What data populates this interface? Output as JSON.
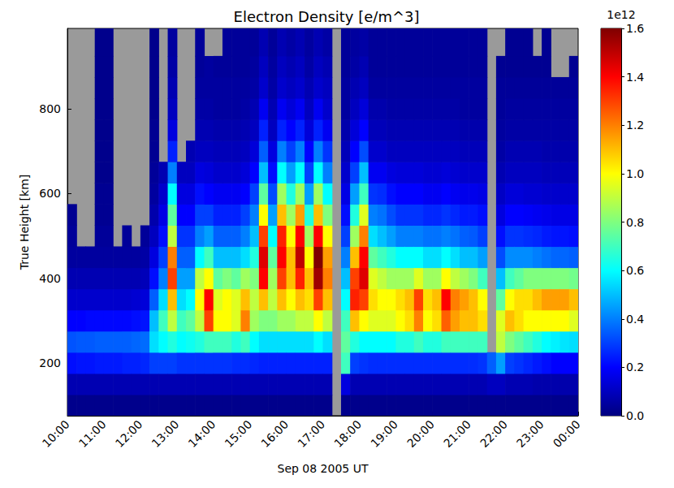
{
  "chart_data": {
    "type": "heatmap",
    "title": "Electron Density [e/m^3]",
    "x_label": "Sep 08 2005 UT",
    "y_label": "True Height [km]",
    "grid": false,
    "xlim": [
      10,
      24
    ],
    "xticks": [
      {
        "value": 10,
        "label": "10:00"
      },
      {
        "value": 11,
        "label": "11:00"
      },
      {
        "value": 12,
        "label": "12:00"
      },
      {
        "value": 13,
        "label": "13:00"
      },
      {
        "value": 14,
        "label": "14:00"
      },
      {
        "value": 15,
        "label": "15:00"
      },
      {
        "value": 16,
        "label": "16:00"
      },
      {
        "value": 17,
        "label": "17:00"
      },
      {
        "value": 18,
        "label": "18:00"
      },
      {
        "value": 19,
        "label": "19:00"
      },
      {
        "value": 20,
        "label": "20:00"
      },
      {
        "value": 21,
        "label": "21:00"
      },
      {
        "value": 22,
        "label": "22:00"
      },
      {
        "value": 23,
        "label": "23:00"
      },
      {
        "value": 24,
        "label": "00:00"
      }
    ],
    "ylim": [
      75,
      990
    ],
    "yticks": [
      200,
      400,
      600,
      800
    ],
    "x": [
      10.125,
      10.375,
      10.625,
      10.875,
      11.125,
      11.375,
      11.625,
      11.875,
      12.125,
      12.375,
      12.625,
      12.875,
      13.125,
      13.375,
      13.625,
      13.875,
      14.125,
      14.375,
      14.625,
      14.875,
      15.125,
      15.375,
      15.625,
      15.875,
      16.125,
      16.375,
      16.625,
      16.875,
      17.125,
      17.375,
      17.625,
      17.875,
      18.125,
      18.375,
      18.625,
      18.875,
      19.125,
      19.375,
      19.625,
      19.875,
      20.125,
      20.375,
      20.625,
      20.875,
      21.125,
      21.375,
      21.625,
      21.875,
      22.125,
      22.375,
      22.625,
      22.875,
      23.125,
      23.375,
      23.625,
      23.875
    ],
    "y": [
      100,
      150,
      200,
      250,
      300,
      350,
      400,
      450,
      500,
      550,
      600,
      650,
      700,
      750,
      800,
      850,
      900,
      950
    ],
    "values": [
      [
        0.02,
        0.08,
        0.22,
        0.33,
        0.2,
        0.12,
        0.08,
        0.05,
        0.04,
        0.03,
        null,
        null,
        null,
        null,
        null,
        null,
        null,
        null
      ],
      [
        0.02,
        0.08,
        0.23,
        0.34,
        0.2,
        0.12,
        0.08,
        0.05,
        null,
        null,
        null,
        null,
        null,
        null,
        null,
        null,
        null,
        null
      ],
      [
        0.02,
        0.08,
        0.23,
        0.34,
        0.21,
        0.12,
        0.08,
        0.05,
        null,
        null,
        null,
        null,
        null,
        null,
        null,
        null,
        null,
        null
      ],
      [
        0.02,
        0.08,
        0.24,
        0.35,
        0.21,
        0.12,
        0.08,
        0.05,
        0.04,
        0.03,
        0.03,
        0.02,
        0.02,
        0.02,
        0.02,
        0.02,
        0.02,
        0.02
      ],
      [
        0.02,
        0.08,
        0.24,
        0.35,
        0.21,
        0.12,
        0.08,
        0.05,
        0.04,
        0.03,
        0.03,
        0.02,
        0.02,
        0.02,
        0.02,
        0.02,
        0.02,
        0.02
      ],
      [
        0.02,
        0.08,
        0.24,
        0.35,
        0.21,
        0.12,
        0.08,
        0.05,
        null,
        null,
        null,
        null,
        null,
        null,
        null,
        null,
        null,
        null
      ],
      [
        0.02,
        0.08,
        0.25,
        0.35,
        0.21,
        0.12,
        0.08,
        0.05,
        0.04,
        null,
        null,
        null,
        null,
        null,
        null,
        null,
        null,
        null
      ],
      [
        0.02,
        0.08,
        0.25,
        0.36,
        0.22,
        0.13,
        0.08,
        0.05,
        null,
        null,
        null,
        null,
        null,
        null,
        null,
        null,
        null,
        null
      ],
      [
        0.02,
        0.08,
        0.26,
        0.37,
        0.23,
        0.14,
        0.09,
        0.06,
        0.04,
        null,
        null,
        null,
        null,
        null,
        null,
        null,
        null,
        null
      ],
      [
        0.02,
        0.08,
        0.3,
        0.55,
        0.5,
        0.35,
        0.22,
        0.15,
        0.1,
        0.07,
        0.05,
        0.04,
        0.03,
        0.03,
        0.02,
        0.02,
        0.02,
        0.02
      ],
      [
        0.02,
        0.08,
        0.3,
        0.6,
        0.7,
        0.55,
        0.4,
        0.3,
        0.22,
        0.16,
        0.12,
        0.08,
        null,
        null,
        null,
        null,
        null,
        null
      ],
      [
        0.02,
        0.08,
        0.3,
        0.65,
        0.9,
        1.1,
        1.3,
        1.2,
        0.9,
        0.75,
        0.6,
        0.4,
        0.25,
        0.15,
        0.1,
        0.08,
        0.06,
        0.05
      ],
      [
        0.02,
        0.08,
        0.28,
        0.6,
        0.7,
        0.55,
        0.45,
        0.35,
        0.28,
        0.2,
        0.15,
        0.1,
        null,
        null,
        null,
        null,
        null,
        null
      ],
      [
        0.02,
        0.08,
        0.28,
        0.62,
        0.75,
        0.6,
        0.45,
        0.35,
        0.28,
        0.2,
        0.15,
        0.1,
        0.08,
        null,
        null,
        null,
        null,
        null
      ],
      [
        0.02,
        0.08,
        0.28,
        0.65,
        0.9,
        1.0,
        0.9,
        0.6,
        0.4,
        0.3,
        0.22,
        0.15,
        0.1,
        0.08,
        0.06,
        0.05,
        0.04,
        0.04
      ],
      [
        0.02,
        0.08,
        0.28,
        0.7,
        1.3,
        1.4,
        1.0,
        0.7,
        0.45,
        0.3,
        0.2,
        0.14,
        0.1,
        0.08,
        0.06,
        0.05,
        0.05,
        null
      ],
      [
        0.02,
        0.08,
        0.28,
        0.7,
        1.0,
        0.95,
        0.75,
        0.5,
        0.35,
        0.25,
        0.18,
        0.12,
        0.09,
        0.07,
        0.05,
        0.05,
        0.04,
        null
      ],
      [
        0.02,
        0.08,
        0.28,
        0.7,
        1.0,
        1.0,
        0.8,
        0.5,
        0.35,
        0.25,
        0.18,
        0.12,
        0.09,
        0.07,
        0.05,
        0.05,
        0.04,
        0.04
      ],
      [
        0.02,
        0.08,
        0.27,
        0.65,
        0.95,
        0.95,
        0.75,
        0.5,
        0.35,
        0.25,
        0.18,
        0.12,
        0.09,
        0.07,
        0.05,
        0.05,
        0.04,
        0.04
      ],
      [
        0.02,
        0.08,
        0.27,
        0.7,
        1.2,
        1.1,
        0.85,
        0.55,
        0.4,
        0.3,
        0.2,
        0.14,
        0.1,
        0.08,
        0.06,
        0.05,
        0.04,
        0.04
      ],
      [
        0.02,
        0.08,
        0.26,
        0.6,
        0.85,
        0.9,
        0.8,
        0.65,
        0.5,
        0.4,
        0.3,
        0.2,
        0.14,
        0.1,
        0.08,
        0.06,
        0.05,
        0.04
      ],
      [
        0.02,
        0.08,
        0.25,
        0.55,
        0.8,
        1.1,
        1.4,
        1.45,
        1.3,
        1.0,
        0.75,
        0.5,
        0.35,
        0.25,
        0.18,
        0.12,
        0.1,
        0.08
      ],
      [
        0.02,
        0.08,
        0.25,
        0.55,
        0.8,
        0.9,
        0.85,
        0.75,
        0.6,
        0.45,
        0.32,
        0.22,
        0.15,
        0.1,
        0.08,
        0.06,
        0.05,
        0.04
      ],
      [
        0.02,
        0.08,
        0.25,
        0.55,
        0.85,
        1.1,
        1.3,
        1.4,
        1.35,
        1.1,
        0.85,
        0.6,
        0.4,
        0.25,
        0.18,
        0.12,
        0.1,
        0.08
      ],
      [
        0.02,
        0.08,
        0.25,
        0.55,
        0.85,
        1.0,
        1.1,
        1.1,
        1.0,
        0.85,
        0.65,
        0.45,
        0.3,
        0.2,
        0.14,
        0.1,
        0.08,
        0.06
      ],
      [
        0.02,
        0.08,
        0.25,
        0.55,
        0.9,
        1.1,
        1.35,
        1.5,
        1.4,
        1.15,
        0.85,
        0.6,
        0.4,
        0.25,
        0.18,
        0.12,
        0.1,
        0.08
      ],
      [
        0.02,
        0.08,
        0.25,
        0.55,
        0.9,
        1.05,
        1.1,
        1.0,
        0.85,
        0.65,
        0.45,
        0.3,
        0.2,
        0.14,
        0.1,
        0.08,
        0.06,
        0.05
      ],
      [
        0.02,
        0.08,
        0.25,
        0.6,
        1.0,
        1.3,
        1.55,
        1.6,
        1.4,
        1.1,
        0.85,
        0.6,
        0.4,
        0.25,
        0.18,
        0.12,
        0.1,
        0.08
      ],
      [
        0.02,
        0.08,
        0.25,
        0.55,
        0.9,
        1.1,
        1.2,
        1.15,
        1.0,
        0.8,
        0.6,
        0.4,
        0.28,
        0.18,
        0.12,
        0.1,
        0.08,
        0.06
      ],
      [
        null,
        null,
        null,
        null,
        null,
        null,
        null,
        null,
        null,
        null,
        null,
        null,
        null,
        null,
        null,
        null,
        null,
        null
      ],
      [
        0.02,
        0.15,
        0.7,
        0.75,
        0.7,
        0.6,
        0.5,
        0.4,
        0.3,
        0.22,
        0.16,
        0.12,
        0.09,
        0.07,
        0.05,
        0.05,
        0.04,
        0.04
      ],
      [
        0.02,
        0.08,
        0.3,
        0.65,
        1.1,
        1.35,
        1.3,
        1.1,
        0.85,
        0.65,
        0.45,
        0.3,
        0.2,
        0.14,
        0.1,
        0.08,
        0.06,
        0.05
      ],
      [
        0.02,
        0.08,
        0.28,
        0.6,
        1.0,
        1.3,
        1.45,
        1.4,
        1.2,
        0.95,
        0.7,
        0.5,
        0.32,
        0.2,
        0.14,
        0.1,
        0.08,
        0.06
      ],
      [
        0.02,
        0.08,
        0.27,
        0.6,
        0.95,
        1.05,
        0.95,
        0.75,
        0.55,
        0.4,
        0.28,
        0.18,
        0.12,
        0.09,
        0.07,
        0.05,
        0.04,
        0.04
      ],
      [
        0.02,
        0.08,
        0.27,
        0.6,
        0.95,
        1.0,
        0.9,
        0.7,
        0.5,
        0.38,
        0.27,
        0.18,
        0.12,
        0.09,
        0.07,
        0.05,
        0.04,
        0.04
      ],
      [
        0.02,
        0.08,
        0.27,
        0.6,
        0.95,
        1.0,
        0.85,
        0.65,
        0.45,
        0.32,
        0.22,
        0.15,
        0.1,
        0.08,
        0.06,
        0.05,
        0.04,
        0.04
      ],
      [
        0.02,
        0.08,
        0.27,
        0.65,
        1.0,
        1.05,
        0.85,
        0.6,
        0.4,
        0.28,
        0.2,
        0.14,
        0.1,
        0.08,
        0.06,
        0.05,
        0.04,
        0.04
      ],
      [
        0.02,
        0.08,
        0.27,
        0.65,
        1.05,
        1.1,
        0.85,
        0.6,
        0.4,
        0.28,
        0.2,
        0.14,
        0.1,
        0.08,
        0.06,
        0.05,
        0.04,
        0.04
      ],
      [
        0.02,
        0.08,
        0.27,
        0.7,
        1.2,
        1.3,
        0.95,
        0.6,
        0.4,
        0.28,
        0.2,
        0.14,
        0.1,
        0.08,
        0.06,
        0.05,
        0.04,
        0.04
      ],
      [
        0.02,
        0.08,
        0.27,
        0.65,
        1.0,
        1.05,
        0.85,
        0.55,
        0.38,
        0.26,
        0.18,
        0.13,
        0.1,
        0.08,
        0.06,
        0.05,
        0.04,
        0.04
      ],
      [
        0.02,
        0.08,
        0.27,
        0.65,
        1.05,
        1.1,
        0.85,
        0.55,
        0.38,
        0.26,
        0.18,
        0.13,
        0.1,
        0.08,
        0.06,
        0.05,
        0.04,
        0.04
      ],
      [
        0.02,
        0.08,
        0.27,
        0.7,
        1.25,
        1.4,
        1.0,
        0.6,
        0.4,
        0.28,
        0.2,
        0.14,
        0.1,
        0.08,
        0.06,
        0.05,
        0.04,
        0.04
      ],
      [
        0.02,
        0.08,
        0.27,
        0.7,
        1.15,
        1.2,
        0.9,
        0.55,
        0.38,
        0.26,
        0.18,
        0.13,
        0.1,
        0.08,
        0.06,
        0.05,
        0.04,
        0.04
      ],
      [
        0.02,
        0.08,
        0.27,
        0.7,
        1.1,
        1.15,
        0.85,
        0.5,
        0.35,
        0.24,
        0.17,
        0.12,
        0.09,
        0.07,
        0.05,
        0.05,
        0.04,
        0.04
      ],
      [
        0.02,
        0.08,
        0.27,
        0.7,
        1.1,
        1.1,
        0.8,
        0.5,
        0.34,
        0.24,
        0.17,
        0.12,
        0.09,
        0.07,
        0.05,
        0.05,
        0.04,
        0.04
      ],
      [
        0.02,
        0.08,
        0.28,
        0.7,
        1.05,
        1.0,
        0.7,
        0.45,
        0.3,
        0.22,
        0.16,
        0.12,
        0.09,
        0.07,
        0.05,
        0.05,
        0.04,
        0.04
      ],
      [
        0.02,
        0.1,
        0.35,
        null,
        null,
        null,
        null,
        null,
        null,
        null,
        null,
        null,
        null,
        null,
        null,
        null,
        null,
        null
      ],
      [
        0.02,
        0.1,
        0.45,
        0.9,
        0.95,
        0.75,
        0.5,
        0.32,
        0.22,
        0.15,
        0.11,
        0.08,
        0.06,
        0.05,
        0.04,
        0.04,
        0.03,
        null
      ],
      [
        0.02,
        0.08,
        0.3,
        0.8,
        1.1,
        1.0,
        0.7,
        0.42,
        0.28,
        0.2,
        0.14,
        0.1,
        0.08,
        0.06,
        0.05,
        0.04,
        0.03,
        0.03
      ],
      [
        0.02,
        0.08,
        0.28,
        0.75,
        1.05,
        1.05,
        0.75,
        0.42,
        0.28,
        0.2,
        0.14,
        0.1,
        0.08,
        0.06,
        0.05,
        0.04,
        0.03,
        0.03
      ],
      [
        0.02,
        0.08,
        0.26,
        0.7,
        1.0,
        1.05,
        0.8,
        0.42,
        0.27,
        0.19,
        0.13,
        0.1,
        0.08,
        0.06,
        0.05,
        0.04,
        0.03,
        0.03
      ],
      [
        0.02,
        0.07,
        0.24,
        0.65,
        1.0,
        1.1,
        0.8,
        0.4,
        0.26,
        0.18,
        0.13,
        0.1,
        0.08,
        0.06,
        0.05,
        0.04,
        0.03,
        null
      ],
      [
        0.02,
        0.07,
        0.22,
        0.6,
        1.0,
        1.15,
        0.8,
        0.38,
        0.24,
        0.17,
        0.12,
        0.09,
        0.07,
        0.06,
        0.05,
        0.04,
        0.03,
        0.03
      ],
      [
        0.02,
        0.07,
        0.2,
        0.58,
        1.0,
        1.15,
        0.8,
        0.36,
        0.23,
        0.16,
        0.12,
        0.09,
        0.07,
        0.06,
        0.05,
        0.04,
        null,
        null
      ],
      [
        0.02,
        0.07,
        0.2,
        0.56,
        1.0,
        1.15,
        0.8,
        0.36,
        0.23,
        0.16,
        0.12,
        0.09,
        0.07,
        0.06,
        0.05,
        0.04,
        null,
        null
      ],
      [
        0.02,
        0.07,
        0.2,
        0.55,
        0.95,
        1.1,
        0.78,
        0.35,
        0.22,
        0.16,
        0.12,
        0.09,
        0.07,
        0.06,
        0.05,
        0.04,
        0.03,
        null
      ]
    ],
    "colorbar": {
      "lim": [
        0,
        1.6
      ],
      "ticks": [
        {
          "value": 0,
          "label": "0.0"
        },
        0.2,
        0.4,
        0.6,
        0.8,
        {
          "value": 1,
          "label": "1.0"
        },
        1.2,
        1.4,
        1.6
      ],
      "offset_label": "1e12",
      "colors": [
        "#00007f",
        "#0000ff",
        "#007fff",
        "#00ffff",
        "#7fff7f",
        "#ffff00",
        "#ff7f00",
        "#ff0000",
        "#7f0000"
      ]
    }
  }
}
